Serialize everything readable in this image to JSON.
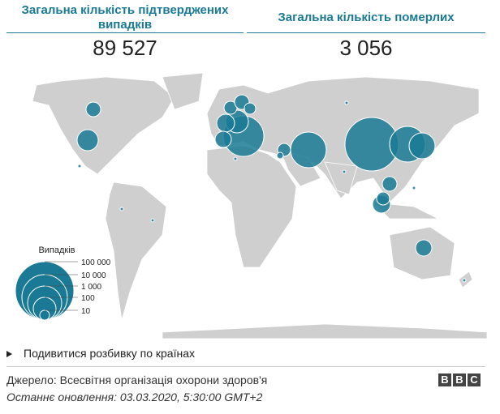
{
  "header": {
    "confirmed_label": "Загальна кількість підтверджених випадків",
    "confirmed_value": "89 527",
    "deaths_label": "Загальна кількість померлих",
    "deaths_value": "3 056"
  },
  "legend": {
    "title": "Випадків",
    "labels": [
      "100 000",
      "10 000",
      "1 000",
      "100",
      "10"
    ]
  },
  "link": "Подивитися розбивку по країнах",
  "footer": {
    "source": "Джерело: Всесвітня організація охорони здоров'я",
    "updated": "Останнє оновлення: 03.03.2020, 5:30:00 GMT+2",
    "logo": [
      "B",
      "B",
      "C"
    ]
  }
}
